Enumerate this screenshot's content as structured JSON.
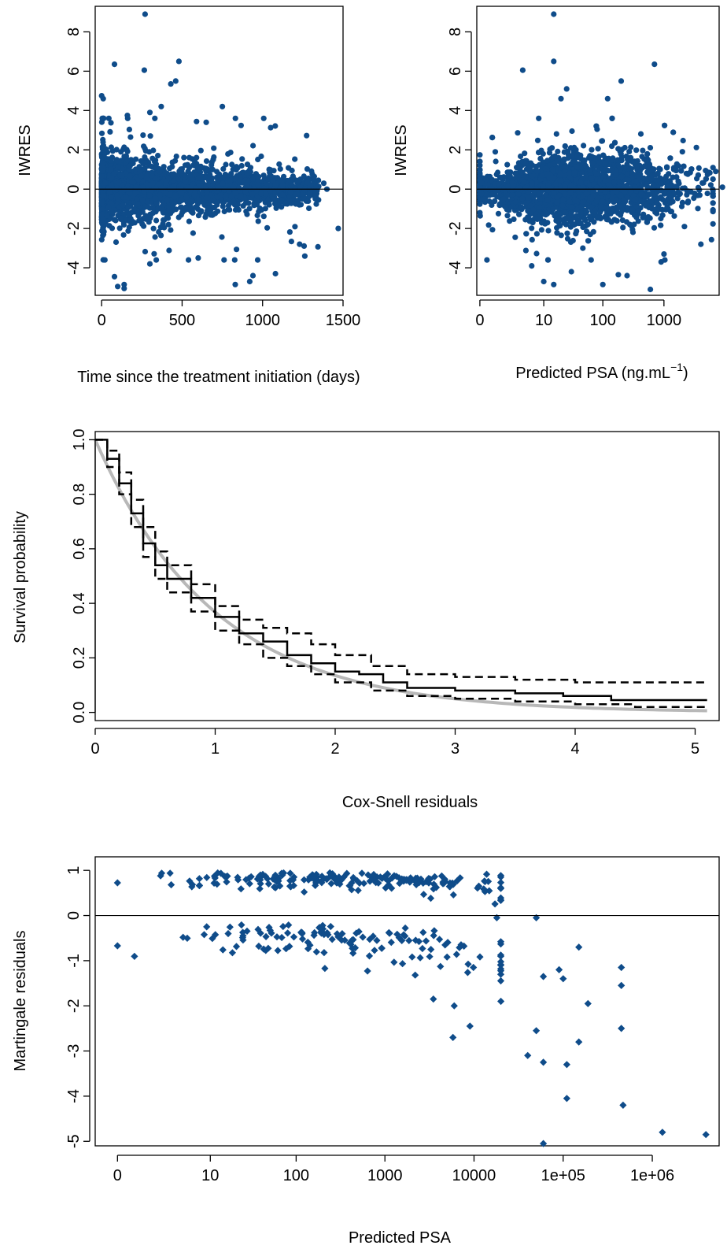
{
  "colors": {
    "points": "#0f4c8a",
    "km": "#000000",
    "exp_curve": "#b8b8b8"
  },
  "chart_data": [
    {
      "type": "scatter",
      "panel": "iwres-vs-time",
      "xlabel": "Time since the treatment initiation (days)",
      "ylabel": "IWRES",
      "xlim": [
        -40,
        1500
      ],
      "ylim": [
        -5.4,
        9.3
      ],
      "xticks": [
        0,
        500,
        1000,
        1500
      ],
      "yticks": [
        -4,
        -2,
        0,
        2,
        4,
        6,
        8
      ],
      "reference_line": 0,
      "outliers": [
        [
          270,
          8.9
        ],
        [
          80,
          6.35
        ],
        [
          480,
          6.5
        ],
        [
          265,
          6.05
        ],
        [
          460,
          5.5
        ],
        [
          430,
          5.35
        ],
        [
          0,
          4.75
        ],
        [
          10,
          4.6
        ],
        [
          750,
          4.2
        ],
        [
          370,
          4.2
        ],
        [
          300,
          3.9
        ],
        [
          160,
          3.75
        ],
        [
          650,
          3.4
        ],
        [
          1470,
          -2.0
        ],
        [
          1230,
          -2.8
        ],
        [
          1080,
          -4.3
        ],
        [
          940,
          -4.4
        ],
        [
          830,
          -4.85
        ],
        [
          140,
          -4.85
        ],
        [
          100,
          -4.95
        ],
        [
          140,
          -5.05
        ],
        [
          80,
          -4.45
        ],
        [
          20,
          -3.6
        ],
        [
          600,
          -3.5
        ],
        [
          300,
          -3.8
        ],
        [
          920,
          -4.7
        ],
        [
          1380,
          0.3
        ],
        [
          1300,
          0.2
        ],
        [
          1400,
          0.0
        ]
      ]
    },
    {
      "type": "scatter",
      "panel": "iwres-vs-predicted-psa",
      "xlabel": "Predicted PSA (ng.mL",
      "xlabel_sup": "−1",
      "xlabel_close": ")",
      "ylabel": "IWRES",
      "xscale": "log10(x+1)",
      "xlim": [
        -0.05,
        3.9
      ],
      "ylim": [
        -5.4,
        9.3
      ],
      "xticks": [
        0,
        10,
        100,
        1000
      ],
      "yticks": [
        -4,
        -2,
        0,
        2,
        4,
        6,
        8
      ],
      "reference_line": 0,
      "outliers": [
        [
          15,
          8.9
        ],
        [
          15,
          6.5
        ],
        [
          4,
          6.05
        ],
        [
          700,
          6.35
        ],
        [
          200,
          5.5
        ],
        [
          25,
          5.1
        ],
        [
          20,
          4.6
        ],
        [
          120,
          4.6
        ],
        [
          2000,
          1.9
        ],
        [
          7000,
          0.9
        ],
        [
          9000,
          0.1
        ],
        [
          600,
          -5.1
        ],
        [
          100,
          -4.85
        ],
        [
          15,
          -4.85
        ],
        [
          10,
          -4.7
        ],
        [
          250,
          -4.4
        ],
        [
          180,
          -4.35
        ],
        [
          900,
          -3.7
        ],
        [
          4000,
          -2.8
        ],
        [
          1000,
          -3.3
        ],
        [
          6,
          -3.9
        ],
        [
          30,
          -4.2
        ]
      ]
    },
    {
      "type": "line",
      "panel": "cox-snell-survival",
      "xlabel": "Cox-Snell residuals",
      "ylabel": "Survival probability",
      "xlim": [
        0,
        5.2
      ],
      "ylim": [
        -0.03,
        1.03
      ],
      "xticks": [
        0,
        1,
        2,
        3,
        4,
        5
      ],
      "yticks": [
        0.0,
        0.2,
        0.4,
        0.6,
        0.8,
        1.0
      ],
      "series": [
        {
          "style": "kaplan-meier",
          "x": [
            0,
            0.1,
            0.2,
            0.3,
            0.4,
            0.5,
            0.6,
            0.8,
            1.0,
            1.2,
            1.4,
            1.6,
            1.8,
            2.0,
            2.2,
            2.4,
            2.6,
            3.0,
            3.5,
            3.9,
            4.3,
            5.1
          ],
          "values": [
            1.0,
            0.93,
            0.84,
            0.73,
            0.62,
            0.54,
            0.49,
            0.42,
            0.35,
            0.29,
            0.26,
            0.21,
            0.18,
            0.15,
            0.14,
            0.11,
            0.09,
            0.08,
            0.07,
            0.06,
            0.045,
            0.045
          ]
        },
        {
          "style": "upper-ci",
          "x": [
            0,
            0.1,
            0.2,
            0.3,
            0.4,
            0.5,
            0.6,
            0.8,
            1.0,
            1.2,
            1.4,
            1.6,
            1.8,
            2.0,
            2.3,
            2.6,
            3.0,
            3.5,
            4.0,
            5.1
          ],
          "values": [
            1.0,
            0.96,
            0.88,
            0.78,
            0.68,
            0.59,
            0.54,
            0.47,
            0.39,
            0.34,
            0.31,
            0.29,
            0.25,
            0.21,
            0.17,
            0.14,
            0.13,
            0.12,
            0.11,
            0.105
          ]
        },
        {
          "style": "lower-ci",
          "x": [
            0,
            0.1,
            0.2,
            0.3,
            0.4,
            0.5,
            0.6,
            0.8,
            1.0,
            1.2,
            1.4,
            1.6,
            1.8,
            2.0,
            2.3,
            2.6,
            3.0,
            3.5,
            4.0,
            4.5,
            5.1
          ],
          "values": [
            1.0,
            0.9,
            0.8,
            0.68,
            0.57,
            0.49,
            0.44,
            0.37,
            0.3,
            0.25,
            0.2,
            0.17,
            0.14,
            0.11,
            0.08,
            0.06,
            0.05,
            0.04,
            0.03,
            0.02,
            0.02
          ]
        },
        {
          "style": "exp(-x)"
        }
      ]
    },
    {
      "type": "scatter",
      "panel": "martingale-vs-psa",
      "xlabel": "Predicted PSA",
      "ylabel": "Martingale residuals",
      "xscale": "log10(x+1)",
      "xlim": [
        -0.25,
        6.75
      ],
      "ylim": [
        -5.1,
        1.3
      ],
      "xticks": [
        "0",
        "10",
        "100",
        "1000",
        "10000",
        "1e+05",
        "1e+06"
      ],
      "yticks": [
        -5,
        -4,
        -3,
        -2,
        -1,
        0,
        1
      ],
      "reference_line": 0,
      "outliers": [
        [
          4000000,
          -4.85
        ],
        [
          1300000,
          -4.8
        ],
        [
          60000,
          -5.05
        ],
        [
          470000,
          -4.2
        ],
        [
          110000,
          -4.05
        ],
        [
          450000,
          -2.5
        ],
        [
          450000,
          -1.55
        ],
        [
          450000,
          -1.15
        ],
        [
          110000,
          -3.3
        ],
        [
          60000,
          -3.25
        ],
        [
          40000,
          -3.1
        ],
        [
          150000,
          -2.8
        ],
        [
          50000,
          -2.55
        ],
        [
          190000,
          -1.95
        ],
        [
          150000,
          -0.7
        ],
        [
          50000,
          -0.05
        ],
        [
          18000,
          -0.05
        ],
        [
          5800,
          -2.7
        ],
        [
          9000,
          -2.45
        ],
        [
          6000,
          -2.0
        ],
        [
          3500,
          -1.85
        ],
        [
          20000,
          -1.9
        ],
        [
          100000,
          -1.4
        ],
        [
          90000,
          -1.2
        ],
        [
          60000,
          -1.35
        ]
      ]
    }
  ]
}
